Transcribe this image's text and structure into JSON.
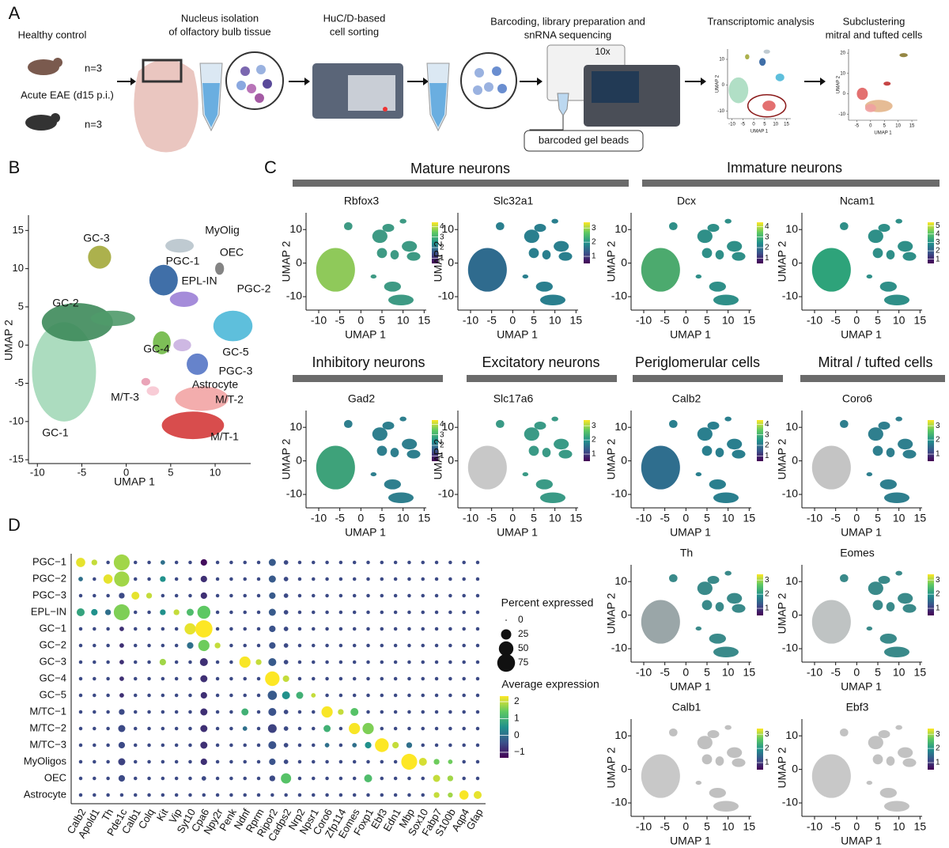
{
  "panel_labels": [
    "A",
    "B",
    "C",
    "D"
  ],
  "panel_a": {
    "groups": [
      {
        "label": "Healthy control",
        "n": "n=3"
      },
      {
        "label": "Acute EAE (d15 p.i.)",
        "n": "n=3"
      }
    ],
    "steps": [
      [
        "Nucleus isolation",
        "of olfactory bulb tissue"
      ],
      [
        "HuC/D-based",
        "cell sorting"
      ],
      [
        "Barcoding, library preparation and",
        "snRNA sequencing"
      ],
      [
        "Transcriptomic analysis"
      ],
      [
        "Subclustering",
        "mitral and tufted cells"
      ]
    ],
    "chip": "10x",
    "beads": "barcoded gel beads",
    "thumbs": [
      {
        "xlabel": "UMAP 1",
        "ylabel": "UMAP 2",
        "xlim": [
          -12,
          17
        ],
        "ylim": [
          -13,
          14
        ],
        "xticks": [
          -10,
          -5,
          0,
          5,
          10,
          15
        ],
        "yticks": [
          -10,
          0,
          10
        ]
      },
      {
        "xlabel": "UMAP 1",
        "ylabel": "UMAP 2",
        "xlim": [
          -8,
          17
        ],
        "ylim": [
          -13,
          22
        ],
        "xticks": [
          -5,
          0,
          5,
          10,
          15
        ],
        "yticks": [
          -10,
          0,
          10,
          20
        ]
      }
    ]
  },
  "panel_b": {
    "xlabel": "UMAP 1",
    "ylabel": "UMAP 2",
    "xlim": [
      -11,
      14
    ],
    "ylim": [
      -15.5,
      17
    ],
    "xticks": [
      -10,
      -5,
      0,
      5,
      10
    ],
    "yticks": [
      -15,
      -10,
      -5,
      0,
      5,
      10,
      15
    ],
    "clusters": [
      "GC-1",
      "GC-2",
      "GC-3",
      "GC-4",
      "GC-5",
      "PGC-1",
      "PGC-2",
      "PGC-3",
      "EPL-IN",
      "M/T-1",
      "M/T-2",
      "M/T-3",
      "Astrocyte",
      "OEC",
      "MyOlig"
    ]
  },
  "feature_plots": {
    "xlabel": "UMAP 1",
    "ylabel": "UMAP 2",
    "xlim": [
      -13,
      17
    ],
    "ylim": [
      -14,
      15
    ],
    "xticks": [
      -10,
      -5,
      0,
      5,
      10,
      15
    ],
    "yticks": [
      -10,
      0,
      10
    ],
    "groups": [
      "Mature neurons",
      "Immature neurons",
      "Inhibitory neurons",
      "Excitatory neurons",
      "Periglomerular cells",
      "Mitral / tufted cells"
    ],
    "genes": [
      {
        "name": "Rbfox3",
        "clim": [
          0.5,
          4.4
        ],
        "cticks": [
          1,
          2,
          3,
          4
        ]
      },
      {
        "name": "Slc32a1",
        "clim": [
          0.5,
          3.4
        ],
        "cticks": [
          1,
          2,
          3
        ]
      },
      {
        "name": "Dcx",
        "clim": [
          0.5,
          4.4
        ],
        "cticks": [
          1,
          2,
          3,
          4
        ]
      },
      {
        "name": "Ncam1",
        "clim": [
          0.5,
          5.4
        ],
        "cticks": [
          1,
          2,
          3,
          4,
          5
        ]
      },
      {
        "name": "Gad2",
        "clim": [
          0.5,
          4.4
        ],
        "cticks": [
          1,
          2,
          3,
          4
        ]
      },
      {
        "name": "Slc17a6",
        "clim": [
          0.5,
          3.4
        ],
        "cticks": [
          1,
          2,
          3
        ]
      },
      {
        "name": "Calb2",
        "clim": [
          0.5,
          4.4
        ],
        "cticks": [
          1,
          2,
          3,
          4
        ]
      },
      {
        "name": "Coro6",
        "clim": [
          0.5,
          3.4
        ],
        "cticks": [
          1,
          2,
          3
        ]
      },
      {
        "name": "Th",
        "clim": [
          0.5,
          3.4
        ],
        "cticks": [
          1,
          2,
          3
        ]
      },
      {
        "name": "Eomes",
        "clim": [
          0.5,
          3.4
        ],
        "cticks": [
          1,
          2,
          3
        ]
      },
      {
        "name": "Calb1",
        "clim": [
          0.5,
          3.4
        ],
        "cticks": [
          1,
          2,
          3
        ]
      },
      {
        "name": "Ebf3",
        "clim": [
          0.5,
          3.4
        ],
        "cticks": [
          1,
          2,
          3
        ]
      }
    ]
  },
  "dot_plot": {
    "genes": [
      "Calb2",
      "Apold1",
      "Th",
      "Pde1c",
      "Calb1",
      "Colq",
      "Kit",
      "Vip",
      "Syt10",
      "Cpa6",
      "Npy2r",
      "Penk",
      "Ndnf",
      "Rprm",
      "Ripor2",
      "Cadps2",
      "Nrp2",
      "Npsr1",
      "Coro6",
      "Zfp114",
      "Eomes",
      "Foxp1",
      "Ebf3",
      "Edn1",
      "Mbp",
      "Sox10",
      "Fabp7",
      "S100b",
      "Aqp4",
      "Gfap"
    ],
    "size_title": "Percent expressed",
    "size_ticks": [
      0,
      25,
      50,
      75
    ],
    "color_title": "Average expression",
    "clim": [
      -1.33,
      2.33
    ],
    "color_ticks": [
      2,
      1,
      0,
      {
        "value": -1,
        "label": "−1"
      }
    ],
    "rows": [
      {
        "name": "PGC−1",
        "pct": [
          20,
          8,
          3,
          60,
          3,
          3,
          5,
          3,
          3,
          10,
          3,
          3,
          3,
          3,
          12,
          5,
          3,
          3,
          3,
          3,
          3,
          3,
          3,
          3,
          3,
          3,
          3,
          3,
          3,
          3
        ],
        "avg": [
          2.2,
          2,
          -0.5,
          1.8,
          -0.5,
          -0.5,
          0,
          -0.5,
          -0.5,
          -1.2,
          -0.5,
          -0.5,
          -0.5,
          -0.5,
          -0.3,
          -0.5,
          -0.5,
          -0.5,
          -0.5,
          -0.5,
          -0.5,
          -0.5,
          -0.5,
          -0.5,
          -0.5,
          -0.5,
          -0.5,
          -0.5,
          -0.5,
          -0.5
        ]
      },
      {
        "name": "PGC−2",
        "pct": [
          5,
          3,
          20,
          55,
          3,
          3,
          8,
          3,
          3,
          10,
          3,
          3,
          3,
          3,
          12,
          5,
          3,
          3,
          3,
          3,
          3,
          3,
          3,
          3,
          3,
          3,
          3,
          3,
          3,
          3
        ],
        "avg": [
          0,
          -0.5,
          2.2,
          1.8,
          -0.5,
          -0.5,
          0.5,
          -0.5,
          -0.5,
          -0.8,
          -0.5,
          -0.5,
          -0.5,
          -0.5,
          -0.3,
          -0.5,
          -0.5,
          -0.5,
          -0.5,
          -0.5,
          -0.5,
          -0.5,
          -0.5,
          -0.5,
          -0.5,
          -0.5,
          -0.5,
          -0.5,
          -0.5,
          -0.5
        ]
      },
      {
        "name": "PGC−3",
        "pct": [
          3,
          3,
          3,
          8,
          15,
          8,
          3,
          3,
          3,
          10,
          3,
          3,
          3,
          3,
          10,
          5,
          3,
          3,
          3,
          3,
          3,
          3,
          3,
          3,
          3,
          3,
          3,
          3,
          3,
          3
        ],
        "avg": [
          -0.5,
          -0.5,
          -0.5,
          -0.5,
          2.2,
          2,
          -0.5,
          -0.5,
          -0.5,
          -0.8,
          -0.5,
          -0.5,
          -0.5,
          -0.5,
          -0.3,
          -0.5,
          -0.5,
          -0.5,
          -0.5,
          -0.5,
          -0.5,
          -0.5,
          -0.5,
          -0.5,
          -0.5,
          -0.5,
          -0.5,
          -0.5,
          -0.5,
          -0.5
        ]
      },
      {
        "name": "EPL−IN",
        "pct": [
          15,
          10,
          8,
          60,
          3,
          3,
          8,
          8,
          12,
          40,
          3,
          3,
          3,
          3,
          12,
          5,
          3,
          3,
          3,
          3,
          3,
          3,
          3,
          3,
          3,
          3,
          3,
          3,
          3,
          3
        ],
        "avg": [
          0.8,
          0.5,
          0,
          1.6,
          -0.5,
          -0.5,
          0.5,
          2,
          1.2,
          1.4,
          -0.5,
          -0.5,
          -0.5,
          -0.5,
          -0.3,
          -0.5,
          -0.5,
          -0.5,
          -0.5,
          -0.5,
          -0.5,
          -0.5,
          -0.5,
          -0.5,
          -0.5,
          -0.5,
          -0.5,
          -0.5,
          -0.5,
          -0.5
        ]
      },
      {
        "name": "GC−1",
        "pct": [
          3,
          3,
          3,
          5,
          3,
          3,
          3,
          3,
          30,
          70,
          3,
          3,
          3,
          3,
          10,
          5,
          3,
          3,
          3,
          3,
          3,
          3,
          3,
          3,
          3,
          3,
          3,
          3,
          3,
          3
        ],
        "avg": [
          -0.5,
          -0.5,
          -0.5,
          -0.8,
          -0.5,
          -0.5,
          -0.5,
          -0.5,
          2.2,
          2.4,
          -0.5,
          -0.5,
          -0.5,
          -0.5,
          -0.4,
          -0.5,
          -0.5,
          -0.5,
          -0.5,
          -0.5,
          -0.5,
          -0.5,
          -0.5,
          -0.5,
          -0.5,
          -0.5,
          -0.5,
          -0.5,
          -0.5,
          -0.5
        ]
      },
      {
        "name": "GC−2",
        "pct": [
          3,
          3,
          3,
          5,
          3,
          3,
          3,
          3,
          10,
          30,
          8,
          3,
          3,
          3,
          10,
          5,
          3,
          3,
          3,
          3,
          3,
          3,
          3,
          3,
          3,
          3,
          3,
          3,
          3,
          3
        ],
        "avg": [
          -0.5,
          -0.5,
          -0.5,
          -0.8,
          -0.5,
          -0.5,
          -0.5,
          -0.5,
          0,
          1.5,
          2,
          -0.5,
          -0.5,
          -0.5,
          -0.4,
          -0.5,
          -0.5,
          -0.5,
          -0.5,
          -0.5,
          -0.5,
          -0.5,
          -0.5,
          -0.5,
          -0.5,
          -0.5,
          -0.5,
          -0.5,
          -0.5,
          -0.5
        ]
      },
      {
        "name": "GC−3",
        "pct": [
          3,
          3,
          3,
          5,
          3,
          3,
          10,
          3,
          3,
          15,
          3,
          3,
          30,
          8,
          15,
          5,
          3,
          3,
          3,
          3,
          3,
          3,
          3,
          3,
          3,
          3,
          3,
          3,
          3,
          3
        ],
        "avg": [
          -0.5,
          -0.5,
          -0.5,
          -0.8,
          -0.5,
          -0.5,
          1.8,
          -0.5,
          -0.5,
          -0.8,
          -0.5,
          -0.5,
          2.3,
          2,
          -0.3,
          -0.5,
          -0.5,
          -0.5,
          -0.5,
          -0.5,
          -0.5,
          -0.5,
          -0.5,
          -0.5,
          -0.5,
          -0.5,
          -0.5,
          -0.5,
          -0.5,
          -0.5
        ]
      },
      {
        "name": "GC−4",
        "pct": [
          3,
          3,
          3,
          5,
          3,
          3,
          3,
          3,
          3,
          12,
          3,
          3,
          3,
          3,
          50,
          10,
          3,
          3,
          3,
          3,
          3,
          3,
          3,
          3,
          3,
          3,
          3,
          3,
          3,
          3
        ],
        "avg": [
          -0.5,
          -0.5,
          -0.5,
          -0.8,
          -0.5,
          -0.5,
          -0.5,
          -0.5,
          -0.5,
          -0.8,
          -0.5,
          -0.5,
          -0.5,
          -0.5,
          2.4,
          2,
          -0.5,
          -0.5,
          -0.5,
          -0.5,
          -0.5,
          -0.5,
          -0.5,
          -0.5,
          -0.5,
          -0.5,
          -0.5,
          -0.5,
          -0.5,
          -0.5
        ]
      },
      {
        "name": "GC−5",
        "pct": [
          3,
          3,
          3,
          5,
          3,
          3,
          3,
          3,
          3,
          10,
          3,
          3,
          3,
          3,
          20,
          15,
          12,
          5,
          3,
          3,
          3,
          3,
          3,
          3,
          3,
          3,
          3,
          3,
          3,
          3
        ],
        "avg": [
          -0.5,
          -0.5,
          -0.5,
          -0.8,
          -0.5,
          -0.5,
          -0.5,
          -0.5,
          -0.5,
          -0.8,
          -0.5,
          -0.5,
          -0.5,
          -0.5,
          -0.3,
          0.5,
          1,
          2,
          -0.5,
          -0.5,
          -0.5,
          -0.5,
          -0.5,
          -0.5,
          -0.5,
          -0.5,
          -0.5,
          -0.5,
          -0.5,
          -0.5
        ]
      },
      {
        "name": "M/TC−1",
        "pct": [
          3,
          3,
          3,
          8,
          3,
          3,
          3,
          3,
          3,
          12,
          3,
          3,
          12,
          3,
          15,
          5,
          3,
          3,
          30,
          8,
          15,
          3,
          3,
          3,
          3,
          3,
          3,
          3,
          3,
          3
        ],
        "avg": [
          -0.5,
          -0.5,
          -0.5,
          -0.5,
          -0.5,
          -0.5,
          -0.5,
          -0.5,
          -0.5,
          -0.8,
          -0.5,
          -0.5,
          1,
          -0.5,
          -0.4,
          -0.5,
          -0.5,
          -0.5,
          2.3,
          2,
          1.3,
          -0.5,
          -0.5,
          -0.5,
          -0.5,
          -0.5,
          -0.5,
          -0.5,
          -0.5,
          -0.5
        ]
      },
      {
        "name": "M/TC−2",
        "pct": [
          3,
          3,
          3,
          12,
          3,
          3,
          3,
          3,
          3,
          12,
          3,
          3,
          5,
          3,
          18,
          5,
          3,
          3,
          12,
          3,
          30,
          30,
          3,
          3,
          3,
          3,
          3,
          3,
          3,
          3
        ],
        "avg": [
          -0.5,
          -0.5,
          -0.5,
          -0.5,
          -0.5,
          -0.5,
          -0.5,
          -0.5,
          -0.5,
          -0.8,
          -0.5,
          -0.5,
          0,
          -0.5,
          -0.6,
          -0.5,
          -0.5,
          -0.5,
          1,
          -0.5,
          2.3,
          1.6,
          -0.5,
          -0.5,
          -0.5,
          -0.5,
          -0.5,
          -0.5,
          -0.5,
          -0.5
        ]
      },
      {
        "name": "M/TC−3",
        "pct": [
          3,
          3,
          3,
          10,
          3,
          3,
          3,
          3,
          3,
          12,
          3,
          3,
          3,
          3,
          15,
          5,
          3,
          3,
          5,
          3,
          5,
          10,
          45,
          10,
          8,
          3,
          3,
          3,
          3,
          3
        ],
        "avg": [
          -0.5,
          -0.5,
          -0.5,
          -0.5,
          -0.5,
          -0.5,
          -0.5,
          -0.5,
          -0.5,
          -0.8,
          -0.5,
          -0.5,
          -0.5,
          -0.5,
          -0.4,
          -0.5,
          -0.5,
          -0.5,
          0,
          -0.5,
          0,
          0.5,
          2.4,
          2,
          0,
          -0.5,
          -0.5,
          -0.5,
          -0.5,
          -0.5
        ]
      },
      {
        "name": "MyOligos",
        "pct": [
          3,
          3,
          3,
          12,
          3,
          3,
          3,
          3,
          3,
          10,
          3,
          3,
          3,
          3,
          10,
          5,
          3,
          3,
          3,
          3,
          3,
          3,
          3,
          3,
          60,
          15,
          8,
          5,
          3,
          3
        ],
        "avg": [
          -0.5,
          -0.5,
          -0.5,
          -0.6,
          -0.5,
          -0.5,
          -0.5,
          -0.5,
          -0.5,
          -0.8,
          -0.5,
          -0.5,
          -0.5,
          -0.5,
          -0.4,
          -0.5,
          -0.5,
          -0.5,
          -0.5,
          -0.5,
          -0.5,
          -0.5,
          -0.5,
          -0.5,
          2.4,
          2.1,
          1.5,
          1.5,
          -0.5,
          -0.5
        ]
      },
      {
        "name": "OEC",
        "pct": [
          3,
          3,
          3,
          10,
          3,
          3,
          3,
          3,
          3,
          5,
          3,
          3,
          3,
          3,
          8,
          25,
          3,
          3,
          3,
          3,
          3,
          15,
          3,
          3,
          3,
          3,
          12,
          8,
          3,
          3
        ],
        "avg": [
          -0.5,
          -0.5,
          -0.5,
          -0.5,
          -0.5,
          -0.5,
          -0.5,
          -0.5,
          -0.5,
          -0.5,
          -0.5,
          -0.5,
          -0.5,
          -0.5,
          -0.5,
          1.3,
          -0.5,
          -0.5,
          -0.5,
          -0.5,
          -0.5,
          1.2,
          -0.5,
          -0.5,
          -0.5,
          -0.5,
          2,
          1.8,
          -0.5,
          -0.5
        ]
      },
      {
        "name": "Astrocyte",
        "pct": [
          3,
          3,
          3,
          3,
          3,
          3,
          3,
          3,
          3,
          3,
          3,
          3,
          3,
          3,
          3,
          3,
          3,
          3,
          3,
          3,
          3,
          3,
          3,
          3,
          3,
          3,
          8,
          6,
          20,
          15
        ],
        "avg": [
          -0.5,
          -0.5,
          -0.5,
          -0.5,
          -0.5,
          -0.5,
          -0.5,
          -0.5,
          -0.5,
          -0.5,
          -0.5,
          -0.5,
          -0.5,
          -0.5,
          -0.5,
          -0.5,
          -0.5,
          -0.5,
          -0.5,
          -0.5,
          -0.5,
          -0.5,
          -0.5,
          -0.5,
          -0.5,
          -0.5,
          2,
          1.8,
          2.3,
          2.2
        ]
      }
    ]
  }
}
